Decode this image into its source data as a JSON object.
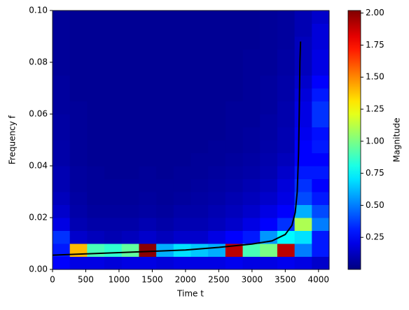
{
  "chart_data": {
    "type": "heatmap",
    "xlabel": "Time t",
    "ylabel": "Frequency f",
    "colorbar_label": "Magnitude",
    "colormap": "jet",
    "xlim": [
      0,
      4160
    ],
    "ylim": [
      0,
      0.1
    ],
    "clim": [
      0,
      2.02
    ],
    "xticks": [
      0,
      500,
      1000,
      1500,
      2000,
      2500,
      3000,
      3500,
      4000
    ],
    "yticks": [
      {
        "value": 0,
        "label": "0.00"
      },
      {
        "value": 0.02,
        "label": "0.02"
      },
      {
        "value": 0.04,
        "label": "0.04"
      },
      {
        "value": 0.06,
        "label": "0.06"
      },
      {
        "value": 0.08,
        "label": "0.08"
      },
      {
        "value": 0.1,
        "label": "0.10"
      }
    ],
    "cticks": [
      0.25,
      {
        "value": 0.5,
        "label": "0.50"
      },
      0.75,
      {
        "value": 1,
        "label": "1.00"
      },
      1.25,
      {
        "value": 1.5,
        "label": "1.50"
      },
      1.75,
      {
        "value": 2,
        "label": "2.00"
      }
    ],
    "xbins": [
      0,
      260,
      520,
      780,
      1040,
      1300,
      1560,
      1820,
      2080,
      2340,
      2600,
      2860,
      3120,
      3380,
      3640,
      3900,
      4160
    ],
    "ybins": [
      0,
      0.005,
      0.01,
      0.015,
      0.02,
      0.025,
      0.03,
      0.035,
      0.04,
      0.045,
      0.05,
      0.055,
      0.06,
      0.065,
      0.07,
      0.075,
      0.08,
      0.085,
      0.09,
      0.095,
      0.1
    ],
    "z": [
      [
        0.25,
        0.2,
        0.2,
        0.18,
        0.2,
        0.2,
        0.18,
        0.2,
        0.2,
        0.2,
        0.22,
        0.2,
        0.2,
        0.22,
        0.2,
        0.15
      ],
      [
        0.3,
        1.4,
        0.9,
        0.85,
        0.95,
        2.0,
        0.6,
        0.7,
        0.65,
        0.6,
        1.9,
        0.9,
        1.0,
        1.9,
        0.5,
        0.3
      ],
      [
        0.35,
        0.15,
        0.12,
        0.1,
        0.12,
        0.15,
        0.12,
        0.15,
        0.15,
        0.2,
        0.25,
        0.3,
        0.55,
        0.75,
        0.7,
        0.3
      ],
      [
        0.2,
        0.1,
        0.08,
        0.08,
        0.08,
        0.1,
        0.08,
        0.1,
        0.1,
        0.12,
        0.15,
        0.2,
        0.25,
        0.35,
        1.1,
        0.5
      ],
      [
        0.15,
        0.08,
        0.06,
        0.06,
        0.06,
        0.07,
        0.06,
        0.08,
        0.08,
        0.1,
        0.12,
        0.15,
        0.2,
        0.25,
        0.6,
        0.4
      ],
      [
        0.12,
        0.07,
        0.05,
        0.05,
        0.05,
        0.06,
        0.05,
        0.06,
        0.07,
        0.08,
        0.1,
        0.12,
        0.15,
        0.2,
        0.4,
        0.3
      ],
      [
        0.1,
        0.06,
        0.05,
        0.05,
        0.05,
        0.05,
        0.05,
        0.05,
        0.06,
        0.07,
        0.08,
        0.1,
        0.12,
        0.18,
        0.35,
        0.25
      ],
      [
        0.1,
        0.06,
        0.05,
        0.04,
        0.04,
        0.05,
        0.04,
        0.05,
        0.05,
        0.06,
        0.07,
        0.08,
        0.1,
        0.15,
        0.3,
        0.3
      ],
      [
        0.08,
        0.05,
        0.04,
        0.04,
        0.04,
        0.04,
        0.04,
        0.04,
        0.05,
        0.05,
        0.06,
        0.07,
        0.09,
        0.12,
        0.25,
        0.25
      ],
      [
        0.08,
        0.05,
        0.04,
        0.04,
        0.04,
        0.04,
        0.04,
        0.04,
        0.04,
        0.05,
        0.05,
        0.06,
        0.08,
        0.1,
        0.25,
        0.3
      ],
      [
        0.07,
        0.05,
        0.04,
        0.04,
        0.04,
        0.04,
        0.04,
        0.04,
        0.04,
        0.04,
        0.05,
        0.06,
        0.07,
        0.1,
        0.22,
        0.28
      ],
      [
        0.07,
        0.05,
        0.04,
        0.04,
        0.04,
        0.04,
        0.04,
        0.04,
        0.04,
        0.04,
        0.05,
        0.05,
        0.07,
        0.09,
        0.2,
        0.35
      ],
      [
        0.06,
        0.05,
        0.04,
        0.04,
        0.04,
        0.04,
        0.04,
        0.04,
        0.04,
        0.04,
        0.05,
        0.05,
        0.06,
        0.09,
        0.2,
        0.35
      ],
      [
        0.06,
        0.04,
        0.04,
        0.04,
        0.04,
        0.04,
        0.04,
        0.04,
        0.04,
        0.04,
        0.04,
        0.05,
        0.06,
        0.08,
        0.18,
        0.3
      ],
      [
        0.06,
        0.04,
        0.04,
        0.04,
        0.04,
        0.04,
        0.04,
        0.04,
        0.04,
        0.04,
        0.04,
        0.05,
        0.06,
        0.08,
        0.15,
        0.25
      ],
      [
        0.05,
        0.04,
        0.04,
        0.04,
        0.04,
        0.04,
        0.04,
        0.04,
        0.04,
        0.04,
        0.04,
        0.05,
        0.05,
        0.07,
        0.12,
        0.2
      ],
      [
        0.05,
        0.04,
        0.04,
        0.04,
        0.04,
        0.04,
        0.04,
        0.04,
        0.04,
        0.04,
        0.04,
        0.05,
        0.05,
        0.07,
        0.12,
        0.2
      ],
      [
        0.05,
        0.04,
        0.04,
        0.04,
        0.04,
        0.04,
        0.04,
        0.04,
        0.04,
        0.04,
        0.04,
        0.04,
        0.05,
        0.06,
        0.12,
        0.18
      ],
      [
        0.05,
        0.04,
        0.04,
        0.04,
        0.04,
        0.04,
        0.04,
        0.04,
        0.04,
        0.04,
        0.04,
        0.04,
        0.05,
        0.06,
        0.1,
        0.18
      ],
      [
        0.05,
        0.04,
        0.04,
        0.04,
        0.04,
        0.04,
        0.04,
        0.04,
        0.04,
        0.04,
        0.04,
        0.04,
        0.05,
        0.06,
        0.1,
        0.15
      ]
    ],
    "line": {
      "color": "#000000",
      "x": [
        0,
        500,
        1000,
        1500,
        2000,
        2500,
        3000,
        3300,
        3500,
        3600,
        3650,
        3680,
        3700,
        3710,
        3720,
        3730
      ],
      "y": [
        0.0055,
        0.006,
        0.0065,
        0.007,
        0.0075,
        0.0085,
        0.0098,
        0.011,
        0.0135,
        0.017,
        0.022,
        0.03,
        0.045,
        0.06,
        0.08,
        0.088
      ]
    }
  }
}
